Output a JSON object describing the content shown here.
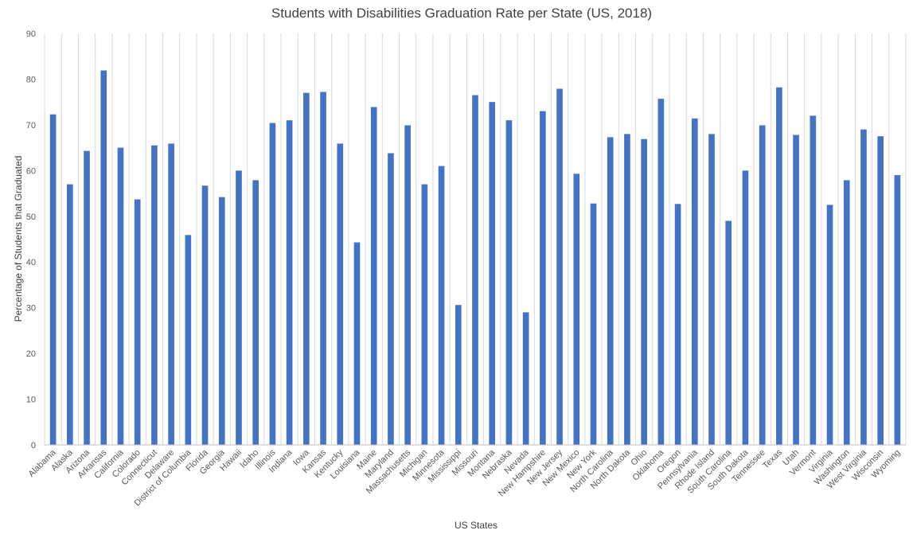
{
  "chart_data": {
    "type": "bar",
    "title": "Students with Disabilities Graduation Rate per State (US, 2018)",
    "xlabel": "US States",
    "ylabel": "Percentage of Students that Graduated",
    "ylim": [
      0,
      90
    ],
    "yticks": [
      0,
      10,
      20,
      30,
      40,
      50,
      60,
      70,
      80,
      90
    ],
    "grid": "vertical category gridlines",
    "legend": "none",
    "bar_color": "#4472c4",
    "categories": [
      "Alabama",
      "Alaska",
      "Arizona",
      "Arkansas",
      "California",
      "Colorado",
      "Connecticut",
      "Delaware",
      "District of Columbia",
      "Florida",
      "Georgia",
      "Hawaii",
      "Idaho",
      "Illinois",
      "Indiana",
      "Iowa",
      "Kansas",
      "Kentucky",
      "Louisiana",
      "Maine",
      "Maryland",
      "Massachusetts",
      "Michigan",
      "Minnesota",
      "Mississippi",
      "Missouri",
      "Montana",
      "Nebraska",
      "Nevada",
      "New Hampshire",
      "New Jersey",
      "New Mexico",
      "New York",
      "North Carolina",
      "North Dakota",
      "Ohio",
      "Oklahoma",
      "Oregon",
      "Pennsylvania",
      "Rhode Island",
      "South Carolina",
      "South Dakota",
      "Tennessee",
      "Texas",
      "Utah",
      "Vermont",
      "Virginia",
      "Washington",
      "West Virginia",
      "Wisconsin",
      "Wyoming"
    ],
    "values": [
      72.3,
      57.0,
      64.3,
      81.9,
      65.0,
      53.7,
      65.5,
      65.9,
      45.9,
      56.7,
      54.2,
      60.0,
      57.9,
      70.4,
      71.0,
      77.0,
      77.2,
      65.9,
      44.3,
      73.9,
      63.8,
      69.9,
      57.0,
      61.0,
      30.6,
      76.5,
      75.0,
      71.0,
      29.0,
      73.0,
      77.9,
      59.3,
      52.8,
      67.3,
      68.0,
      66.9,
      75.7,
      52.7,
      71.4,
      68.0,
      49.0,
      60.0,
      69.9,
      78.2,
      67.8,
      72.0,
      52.5,
      57.9,
      69.0,
      67.5,
      59.0
    ]
  }
}
